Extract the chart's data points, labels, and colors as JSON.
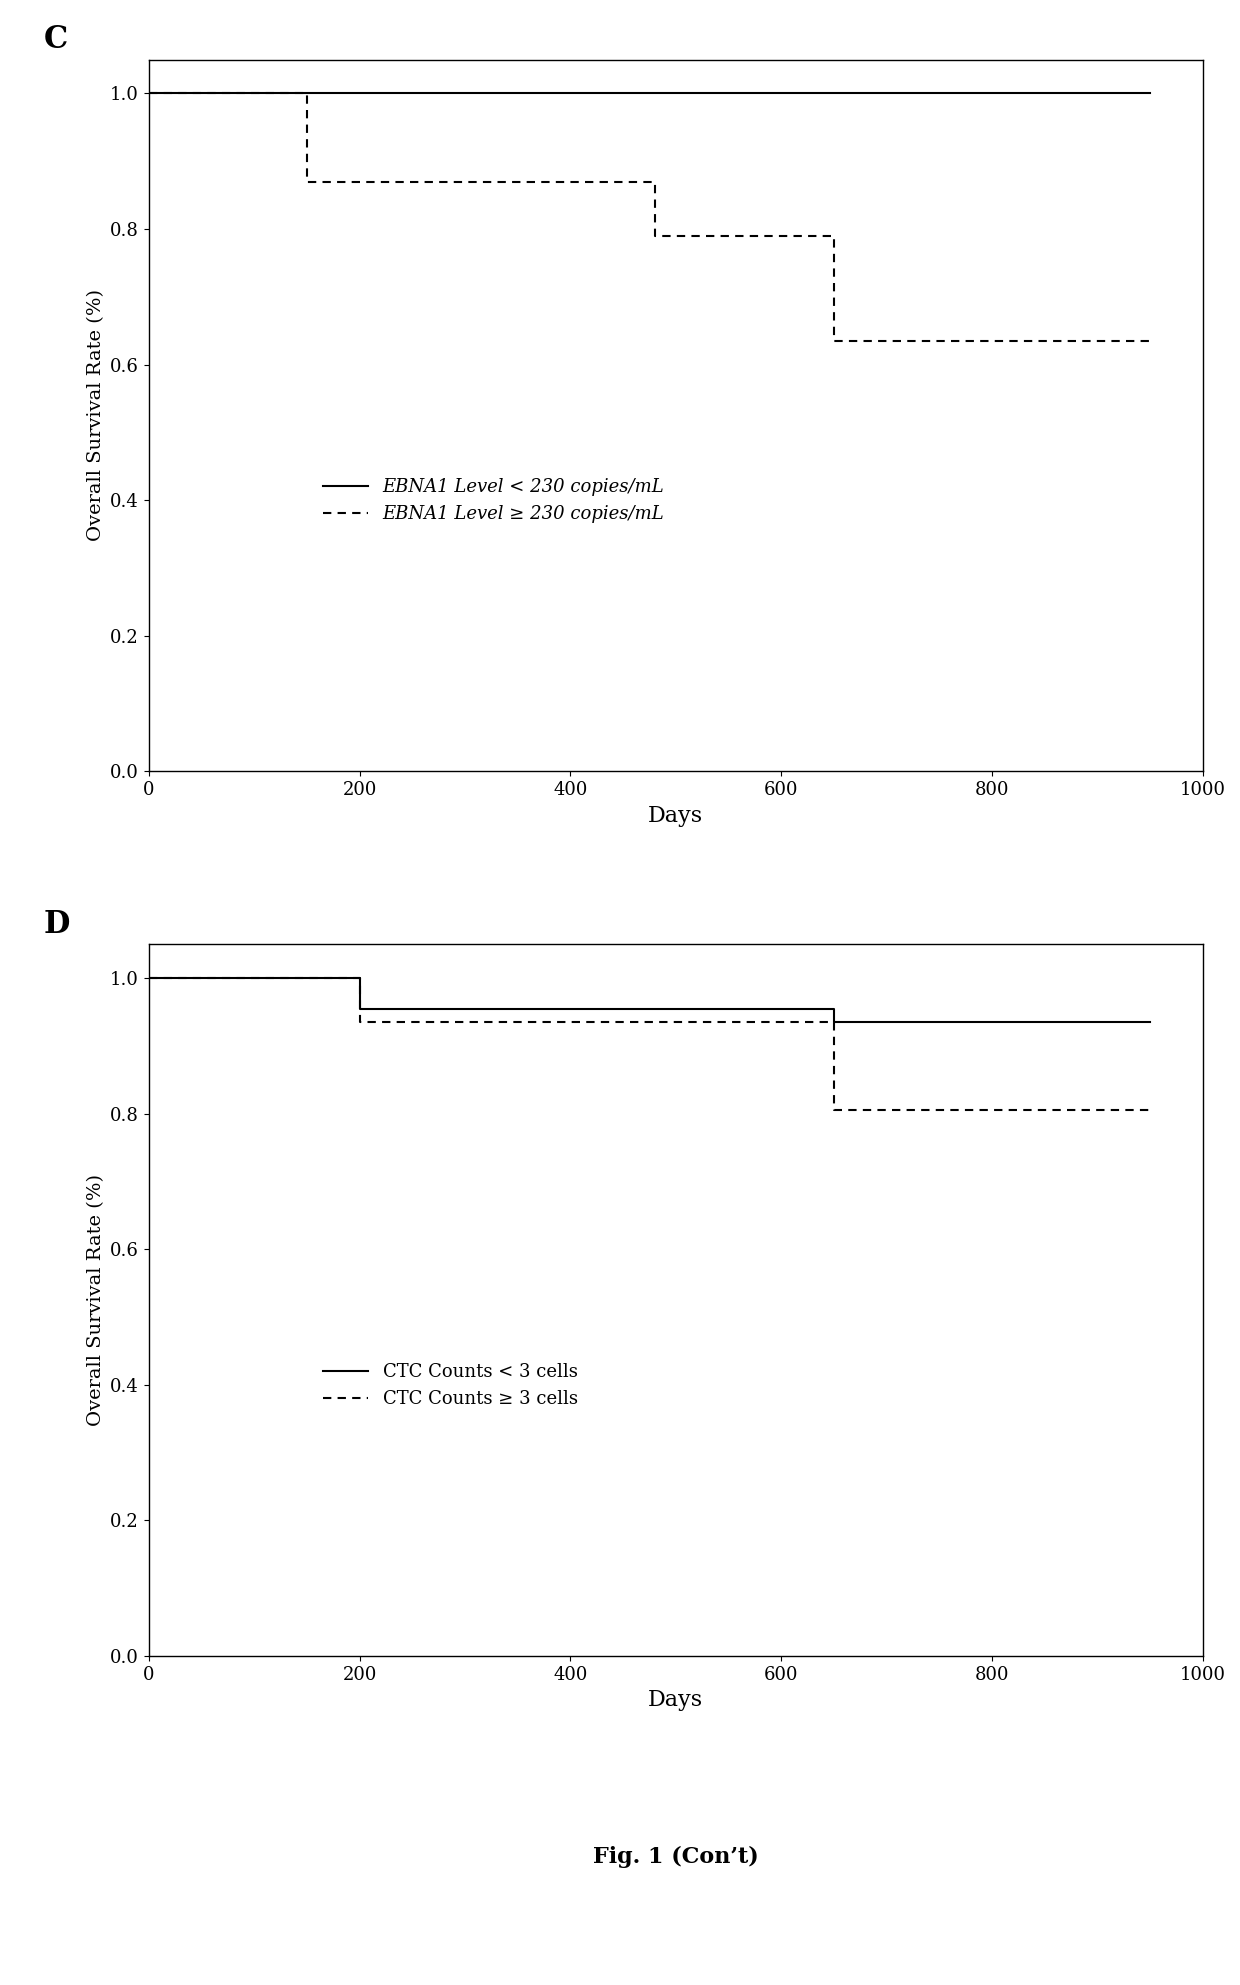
{
  "panel_C": {
    "label": "C",
    "solid_line": {
      "x": [
        0,
        950
      ],
      "y": [
        1.0,
        1.0
      ],
      "label": "EBNA1 Level < 230 copies/mL",
      "style": "solid",
      "color": "black",
      "linewidth": 1.5
    },
    "dashed_line": {
      "steps_x": [
        0,
        150,
        150,
        480,
        480,
        650,
        650,
        950
      ],
      "steps_y": [
        1.0,
        1.0,
        0.87,
        0.87,
        0.79,
        0.79,
        0.635,
        0.635
      ],
      "label": "EBNA1 Level ≥ 230 copies/mL",
      "style": "dashed",
      "color": "black",
      "linewidth": 1.5
    },
    "xlabel": "Days",
    "ylabel": "Overall Survival Rate (%)",
    "xlim": [
      0,
      1000
    ],
    "ylim": [
      0.0,
      1.05
    ],
    "xticks": [
      0,
      200,
      400,
      600,
      800,
      1000
    ],
    "yticks": [
      0.0,
      0.2,
      0.4,
      0.6,
      0.8,
      1.0
    ]
  },
  "panel_D": {
    "label": "D",
    "solid_line": {
      "steps_x": [
        0,
        200,
        200,
        650,
        650,
        950
      ],
      "steps_y": [
        1.0,
        1.0,
        0.955,
        0.955,
        0.935,
        0.935
      ],
      "label": "CTC Counts < 3 cells",
      "style": "solid",
      "color": "black",
      "linewidth": 1.5
    },
    "dashed_line": {
      "steps_x": [
        0,
        200,
        200,
        650,
        650,
        950
      ],
      "steps_y": [
        1.0,
        1.0,
        0.935,
        0.935,
        0.805,
        0.805
      ],
      "label": "CTC Counts ≥ 3 cells",
      "style": "dashed",
      "color": "black",
      "linewidth": 1.5
    },
    "xlabel": "Days",
    "ylabel": "Overall Survival Rate (%)",
    "xlim": [
      0,
      1000
    ],
    "ylim": [
      0.0,
      1.05
    ],
    "xticks": [
      0,
      200,
      400,
      600,
      800,
      1000
    ],
    "yticks": [
      0.0,
      0.2,
      0.4,
      0.6,
      0.8,
      1.0
    ]
  },
  "fig_label": "Fig. 1 (Con’t)",
  "background_color": "#ffffff",
  "font_family": "serif"
}
